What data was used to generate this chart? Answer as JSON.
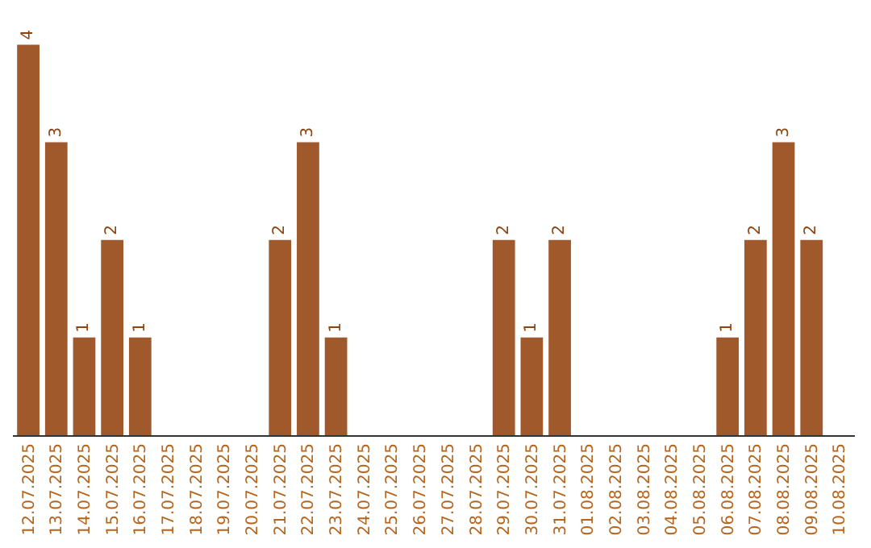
{
  "chart_data": {
    "type": "bar",
    "categories": [
      "12.07.2025",
      "13.07.2025",
      "14.07.2025",
      "15.07.2025",
      "16.07.2025",
      "17.07.2025",
      "18.07.2025",
      "19.07.2025",
      "20.07.2025",
      "21.07.2025",
      "22.07.2025",
      "23.07.2025",
      "24.07.2025",
      "25.07.2025",
      "26.07.2025",
      "27.07.2025",
      "28.07.2025",
      "29.07.2025",
      "30.07.2025",
      "31.07.2025",
      "01.08.2025",
      "02.08.2025",
      "03.08.2025",
      "04.08.2025",
      "05.08.2025",
      "06.08.2025",
      "07.08.2025",
      "08.08.2025",
      "09.08.2025",
      "10.08.2025"
    ],
    "values": [
      4,
      3,
      1,
      2,
      1,
      0,
      0,
      0,
      0,
      2,
      3,
      1,
      0,
      0,
      0,
      0,
      0,
      2,
      1,
      2,
      0,
      0,
      0,
      0,
      0,
      1,
      2,
      3,
      2,
      0
    ],
    "value_labels": [
      "4",
      "3",
      "1",
      "2",
      "1",
      null,
      null,
      null,
      null,
      "2",
      "3",
      "1",
      null,
      null,
      null,
      null,
      null,
      "2",
      "1",
      "2",
      null,
      null,
      null,
      null,
      null,
      "1",
      "2",
      "3",
      "2",
      null
    ],
    "color": "#a0592b"
  }
}
